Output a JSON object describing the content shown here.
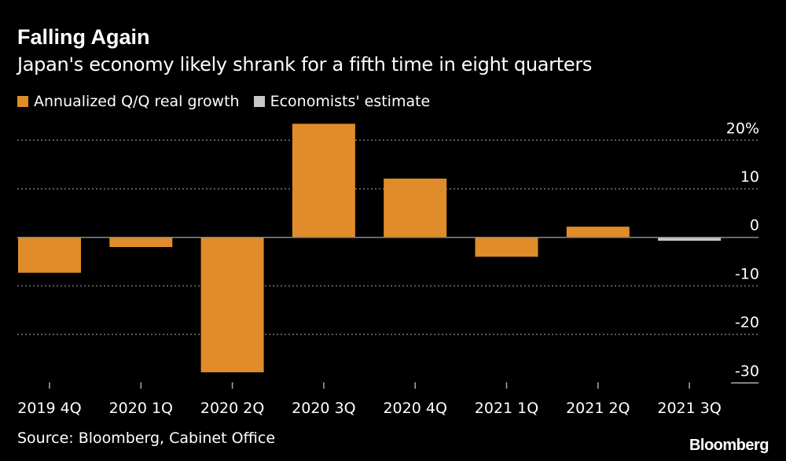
{
  "chart_data": {
    "type": "bar",
    "title": "Falling Again",
    "subtitle": "Japan's economy likely shrank for a fifth time in eight quarters",
    "categories": [
      "2019 4Q",
      "2020 1Q",
      "2020 2Q",
      "2020 3Q",
      "2020 4Q",
      "2021 1Q",
      "2021 2Q",
      "2021 3Q"
    ],
    "values": [
      -7.3,
      -2.0,
      -27.8,
      23.4,
      12.1,
      -4.0,
      2.2,
      -0.7
    ],
    "series_of_point": [
      "actual",
      "actual",
      "actual",
      "actual",
      "actual",
      "actual",
      "actual",
      "estimate"
    ],
    "legend": [
      {
        "key": "actual",
        "name": "Annualized Q/Q real growth",
        "color": "#e08c2a"
      },
      {
        "key": "estimate",
        "name": "Economists' estimate",
        "color": "#c8c8c8"
      }
    ],
    "legend_placement": "top-left",
    "yticks": [
      20,
      10,
      0,
      -10,
      -20,
      -30
    ],
    "ytick_labels": [
      "20%",
      "10",
      "0",
      "-10",
      "-20",
      "-30"
    ],
    "ylim": [
      -30,
      23.5
    ],
    "yaxis_side": "right",
    "grid": true,
    "xlabel": "",
    "ylabel": ""
  },
  "source": "Source: Bloomberg, Cabinet Office",
  "logo": "Bloomberg"
}
